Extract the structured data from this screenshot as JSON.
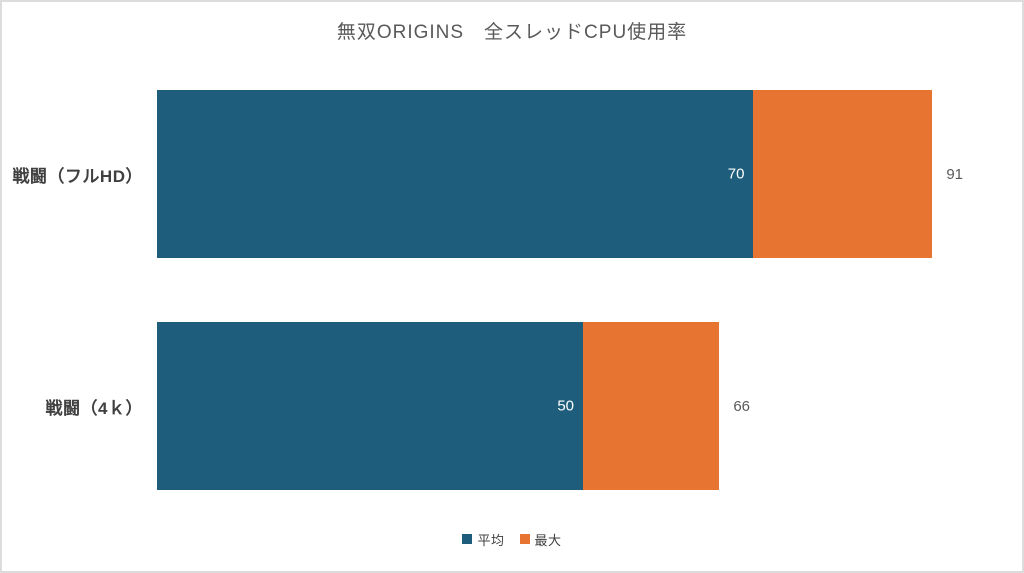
{
  "page": {
    "background": "#FFFFFF",
    "frame_border_color": "#DCDCDC"
  },
  "chart_data": {
    "type": "bar",
    "orientation": "horizontal",
    "title": "無双ORIGINS　全スレッドCPU使用率",
    "title_color": "#595959",
    "categories": [
      "戦闘（フルHD）",
      "戦闘（4ｋ）"
    ],
    "series": [
      {
        "name": "平均",
        "color": "#1F5D7C",
        "values": [
          70,
          50
        ]
      },
      {
        "name": "最大",
        "color": "#E87431",
        "values": [
          91,
          66
        ]
      }
    ],
    "axis_range": [
      0,
      98
    ],
    "grid": false,
    "axis_ticks_visible": false,
    "legend_position": "bottom",
    "value_label_colors": {
      "avg_inside": "#FFFFFF",
      "max_outside": "#595959"
    },
    "category_label_color": "#404040"
  }
}
